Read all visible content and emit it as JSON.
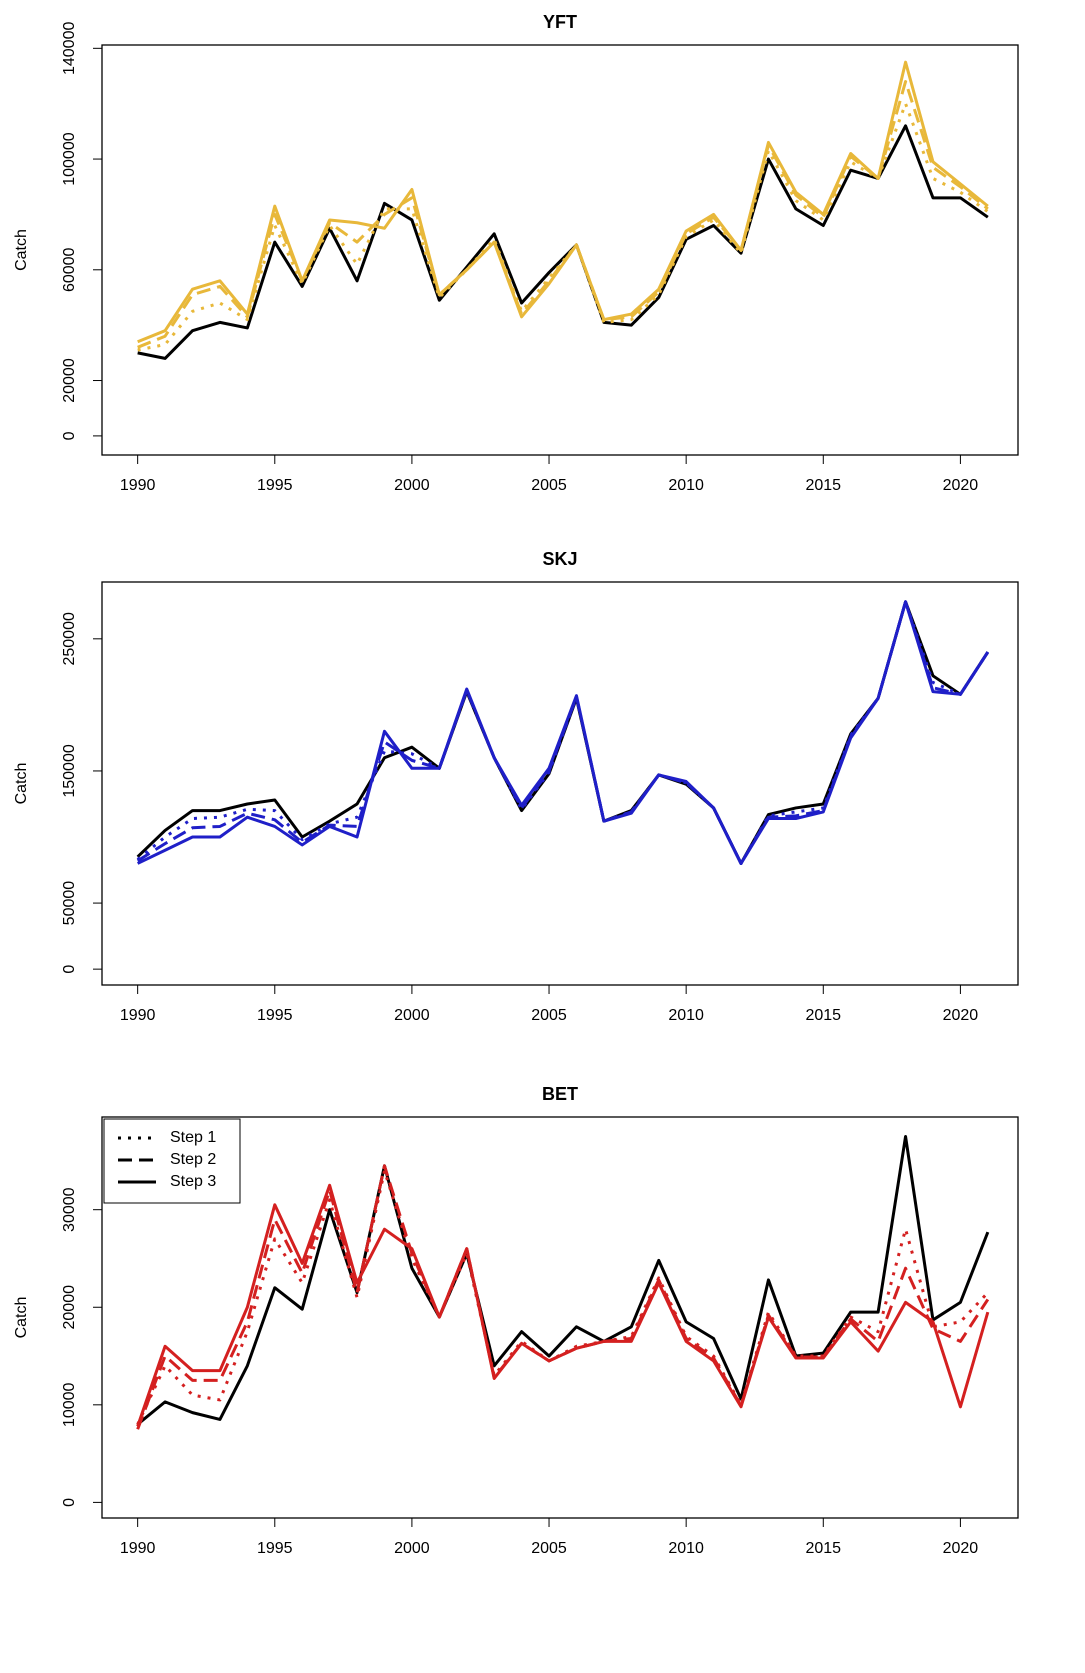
{
  "chart_data": [
    {
      "type": "line",
      "title": "YFT",
      "y_label": "Catch",
      "x": [
        1990,
        1991,
        1992,
        1993,
        1994,
        1995,
        1996,
        1997,
        1998,
        1999,
        2000,
        2001,
        2002,
        2003,
        2004,
        2005,
        2006,
        2007,
        2008,
        2009,
        2010,
        2011,
        2012,
        2013,
        2014,
        2015,
        2016,
        2017,
        2018,
        2019,
        2020,
        2021
      ],
      "xlim": [
        1988.7,
        2022.1
      ],
      "xticks": [
        1990,
        1995,
        2000,
        2005,
        2010,
        2015,
        2020
      ],
      "ylim": [
        -6900,
        141200
      ],
      "yticks": [
        0,
        20000,
        60000,
        100000,
        140000
      ],
      "series": [
        {
          "color": "#000000",
          "dash": "solid",
          "values": [
            30000,
            28000,
            38000,
            41000,
            39000,
            70000,
            54000,
            75000,
            56000,
            84000,
            78000,
            49000,
            61000,
            73000,
            48000,
            59000,
            69000,
            41000,
            40000,
            50000,
            71000,
            76000,
            66000,
            100000,
            82000,
            76000,
            96000,
            93000,
            112000,
            86000,
            86000,
            79000
          ]
        },
        {
          "name": "Step 1",
          "color": "#e8b83a",
          "dash": "dotted",
          "values": [
            31000,
            33000,
            45000,
            48000,
            42000,
            76000,
            55000,
            76000,
            62000,
            82000,
            82000,
            50000,
            60000,
            71000,
            45000,
            57000,
            69000,
            41000,
            42000,
            51000,
            72000,
            78000,
            66000,
            103000,
            85000,
            78000,
            99000,
            93000,
            120000,
            93000,
            88000,
            81000
          ]
        },
        {
          "name": "Step 2",
          "color": "#e8b83a",
          "dash": "dashed",
          "values": [
            32000,
            36000,
            51000,
            54000,
            43000,
            80000,
            56000,
            77000,
            70000,
            80000,
            86000,
            51000,
            60000,
            70000,
            44000,
            56000,
            69000,
            42000,
            43000,
            52000,
            73000,
            79000,
            67000,
            105000,
            87000,
            79000,
            101000,
            93000,
            128000,
            97000,
            90000,
            82000
          ]
        },
        {
          "name": "Step 3",
          "color": "#e8b83a",
          "dash": "solid",
          "values": [
            34000,
            38000,
            53000,
            56000,
            44000,
            83000,
            56000,
            78000,
            77000,
            75000,
            89000,
            51000,
            60000,
            70000,
            43000,
            55000,
            69000,
            42000,
            44000,
            53000,
            74000,
            80000,
            67000,
            106000,
            88000,
            80000,
            102000,
            93000,
            135000,
            99000,
            91000,
            83000
          ]
        }
      ]
    },
    {
      "type": "line",
      "title": "SKJ",
      "y_label": "Catch",
      "x": [
        1990,
        1991,
        1992,
        1993,
        1994,
        1995,
        1996,
        1997,
        1998,
        1999,
        2000,
        2001,
        2002,
        2003,
        2004,
        2005,
        2006,
        2007,
        2008,
        2009,
        2010,
        2011,
        2012,
        2013,
        2014,
        2015,
        2016,
        2017,
        2018,
        2019,
        2020,
        2021
      ],
      "xlim": [
        1988.7,
        2022.1
      ],
      "xticks": [
        1990,
        1995,
        2000,
        2005,
        2010,
        2015,
        2020
      ],
      "ylim": [
        -12000,
        293000
      ],
      "yticks": [
        0,
        50000,
        150000,
        250000
      ],
      "series": [
        {
          "color": "#000000",
          "dash": "solid",
          "values": [
            85000,
            105000,
            120000,
            120000,
            125000,
            128000,
            100000,
            112000,
            125000,
            160000,
            168000,
            152000,
            210000,
            160000,
            120000,
            148000,
            205000,
            112000,
            120000,
            147000,
            140000,
            122000,
            80000,
            117000,
            122000,
            125000,
            178000,
            205000,
            278000,
            222000,
            208000,
            240000
          ]
        },
        {
          "name": "Step 1",
          "color": "#1f1fc8",
          "dash": "dotted",
          "values": [
            83000,
            100000,
            114000,
            115000,
            121000,
            120000,
            98000,
            110000,
            115000,
            165000,
            163000,
            152000,
            211000,
            160000,
            121000,
            149000,
            206000,
            112000,
            119000,
            147000,
            141000,
            122000,
            80000,
            116000,
            119000,
            122000,
            177000,
            205000,
            278000,
            217000,
            208000,
            240000
          ]
        },
        {
          "name": "Step 2",
          "color": "#1f1fc8",
          "dash": "dashed",
          "values": [
            82000,
            95000,
            107000,
            108000,
            118000,
            113000,
            96000,
            109000,
            108000,
            172000,
            158000,
            152000,
            211000,
            160000,
            122000,
            150000,
            206000,
            112000,
            119000,
            147000,
            141000,
            122000,
            80000,
            115000,
            116000,
            120000,
            176000,
            205000,
            278000,
            213000,
            208000,
            240000
          ]
        },
        {
          "name": "Step 3",
          "color": "#1f1fc8",
          "dash": "solid",
          "values": [
            80000,
            90000,
            100000,
            100000,
            115000,
            108000,
            94000,
            108000,
            100000,
            180000,
            152000,
            152000,
            212000,
            160000,
            124000,
            152000,
            207000,
            112000,
            118000,
            147000,
            142000,
            122000,
            80000,
            114000,
            114000,
            119000,
            175000,
            205000,
            278000,
            210000,
            208000,
            240000
          ]
        }
      ]
    },
    {
      "type": "line",
      "title": "BET",
      "y_label": "Catch",
      "x": [
        1990,
        1991,
        1992,
        1993,
        1994,
        1995,
        1996,
        1997,
        1998,
        1999,
        2000,
        2001,
        2002,
        2003,
        2004,
        2005,
        2006,
        2007,
        2008,
        2009,
        2010,
        2011,
        2012,
        2013,
        2014,
        2015,
        2016,
        2017,
        2018,
        2019,
        2020,
        2021
      ],
      "xlim": [
        1988.7,
        2022.1
      ],
      "xticks": [
        1990,
        1995,
        2000,
        2005,
        2010,
        2015,
        2020
      ],
      "ylim": [
        -1600,
        39500
      ],
      "yticks": [
        0,
        10000,
        20000,
        30000
      ],
      "legend": "topleft",
      "legend_color": "#000000",
      "series": [
        {
          "color": "#000000",
          "dash": "solid",
          "values": [
            8000,
            10300,
            9200,
            8500,
            14000,
            22000,
            19800,
            30000,
            21500,
            34500,
            24000,
            19000,
            25500,
            14000,
            17500,
            15000,
            18000,
            16500,
            18000,
            24800,
            18500,
            16800,
            10600,
            22800,
            15000,
            15300,
            19500,
            19500,
            37500,
            18700,
            20500,
            27700
          ]
        },
        {
          "name": "Step 1",
          "color": "#d42020",
          "dash": "dotted",
          "values": [
            8000,
            14000,
            11000,
            10500,
            17500,
            27000,
            22500,
            31000,
            21000,
            34000,
            25000,
            19000,
            25500,
            13000,
            16500,
            14500,
            16000,
            16500,
            17000,
            23000,
            17000,
            15000,
            10000,
            19500,
            15000,
            15000,
            19000,
            17500,
            28000,
            18000,
            18500,
            21500
          ]
        },
        {
          "name": "Step 2",
          "color": "#d42020",
          "dash": "dashed",
          "values": [
            7500,
            15000,
            12500,
            12500,
            18500,
            29000,
            23500,
            32000,
            21500,
            34500,
            25500,
            19000,
            26000,
            12800,
            16300,
            14500,
            15800,
            16500,
            16800,
            22800,
            16800,
            14800,
            9900,
            19200,
            14900,
            14900,
            18800,
            16500,
            24000,
            17800,
            16500,
            20800
          ]
        },
        {
          "name": "Step 3",
          "color": "#d42020",
          "dash": "solid",
          "values": [
            7800,
            16000,
            13500,
            13500,
            20000,
            30500,
            24500,
            32500,
            22500,
            28000,
            26000,
            19000,
            26000,
            12700,
            16300,
            14500,
            15800,
            16500,
            16500,
            22500,
            16500,
            14500,
            9800,
            19000,
            14800,
            14800,
            18500,
            15500,
            20500,
            18500,
            9800,
            19500
          ]
        }
      ]
    }
  ]
}
